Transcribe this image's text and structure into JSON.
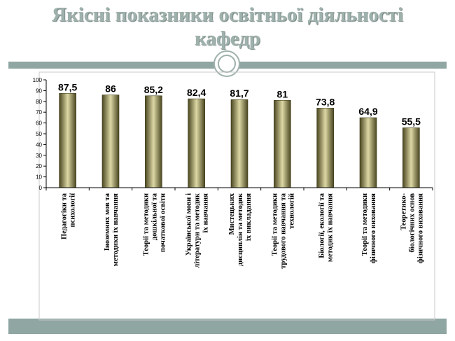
{
  "slide": {
    "title_line1": "Якісні показники освітньої діяльності",
    "title_line2": "кафедр",
    "accent_color": "#8fa6a2",
    "title_color": "#9fb1ac"
  },
  "chart_data": {
    "type": "bar",
    "title": "",
    "xlabel": "",
    "ylabel": "",
    "ylim": [
      0,
      100
    ],
    "yticks": [
      0,
      10,
      20,
      30,
      40,
      50,
      60,
      70,
      80,
      90,
      100
    ],
    "grid": false,
    "legend": "none",
    "bar_color": "#9a9560",
    "categories": [
      [
        "Педагогіки та",
        "психології"
      ],
      [
        "Іноземних мов та",
        "методики їх навчання"
      ],
      [
        "Теорії та методики",
        "дошкільної та",
        "початкової освіти"
      ],
      [
        "Української мови і",
        "літератури та методик",
        "їх навчання"
      ],
      [
        "Мистецьких",
        "дисциплін та методик",
        "їх викладання"
      ],
      [
        "Теорії та методики",
        "трудового навчання та",
        "технологій"
      ],
      [
        "Біології, екології та",
        "методик їх навчання"
      ],
      [
        "Теорії та методики",
        "фізичного виховання"
      ],
      [
        "Теоретико-",
        "біологічних основ",
        "фізичного виховання"
      ]
    ],
    "values": [
      87.5,
      86,
      85.2,
      82.4,
      81.7,
      81,
      73.8,
      64.9,
      55.5
    ],
    "value_labels": [
      "87,5",
      "86",
      "85,2",
      "82,4",
      "81,7",
      "81",
      "73,8",
      "64,9",
      "55,5"
    ]
  }
}
